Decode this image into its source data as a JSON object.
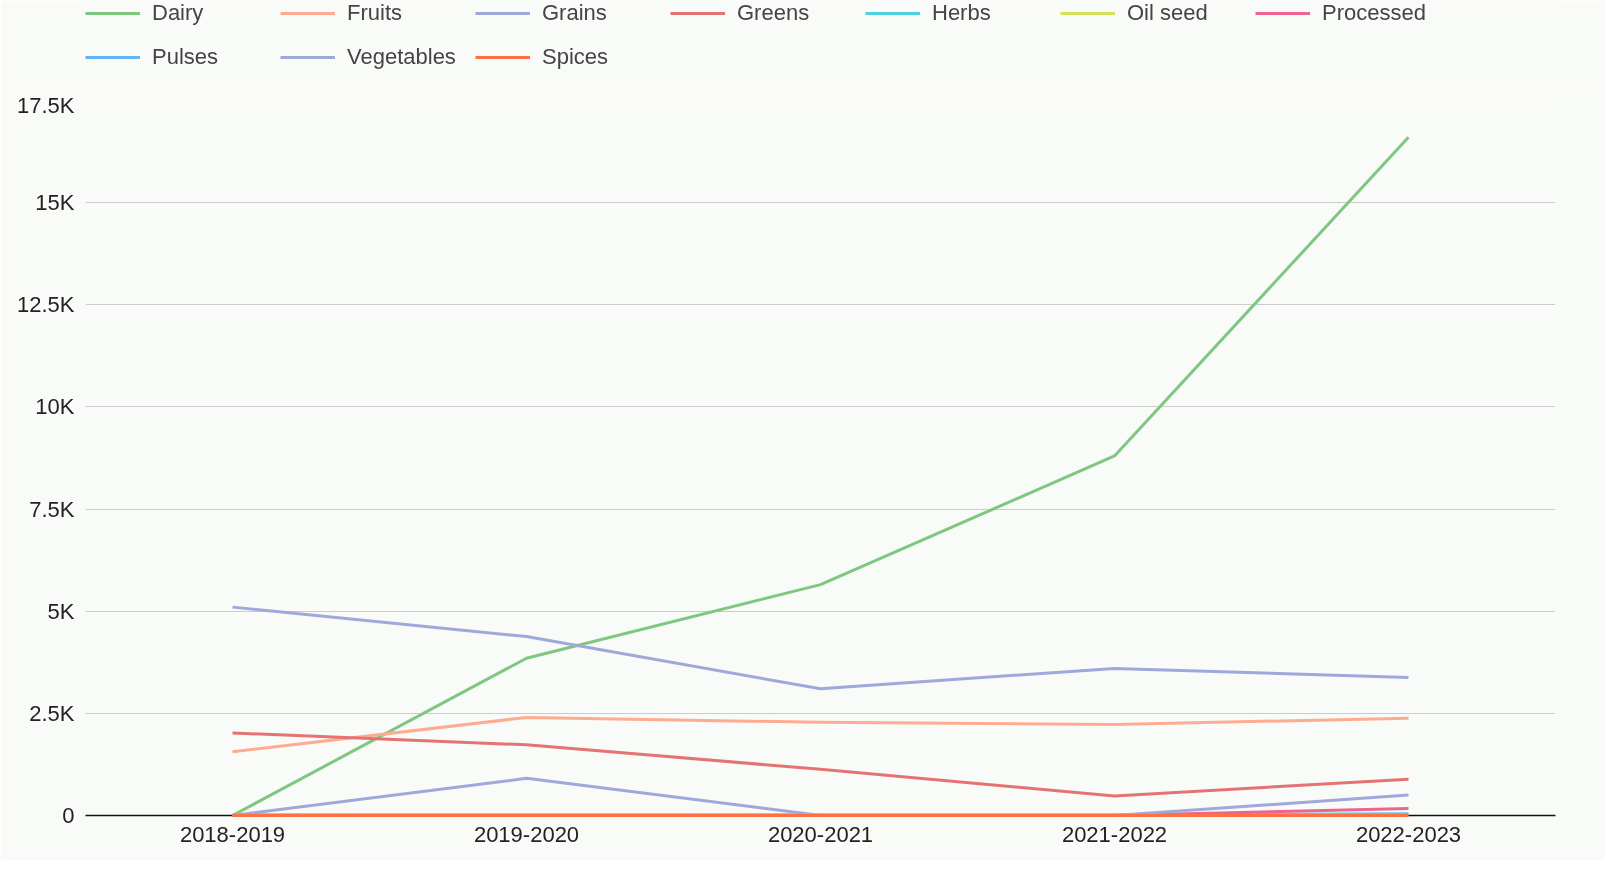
{
  "chart_data": {
    "type": "line",
    "categories": [
      "2018-2019",
      "2019-2020",
      "2020-2021",
      "2021-2022",
      "2022-2023"
    ],
    "ylim": [
      0,
      17500
    ],
    "yticks": [
      0,
      {
        "value": 2500,
        "label": "2.5K"
      },
      {
        "value": 5000,
        "label": "5K"
      },
      {
        "value": 7500,
        "label": "7.5K"
      },
      {
        "value": 10000,
        "label": "10K"
      },
      {
        "value": 12500,
        "label": "12.5K"
      },
      {
        "value": 15000,
        "label": "15K"
      },
      {
        "value": 17500,
        "label": "17.5K"
      }
    ],
    "grid": "y",
    "legend": "top",
    "marker": "none",
    "line_style": "solid",
    "series": [
      {
        "name": "Dairy",
        "color": "#7dc77f",
        "values": [
          0,
          3850,
          5650,
          8800,
          16600
        ]
      },
      {
        "name": "Fruits",
        "color": "#ffab91",
        "values": [
          1560,
          2400,
          2280,
          2230,
          2380
        ]
      },
      {
        "name": "Grains",
        "color": "#9fa8da",
        "values": [
          5100,
          4380,
          3100,
          3600,
          3380
        ]
      },
      {
        "name": "Greens",
        "color": "#e57373",
        "values": [
          2020,
          1730,
          1130,
          480,
          890
        ]
      },
      {
        "name": "Herbs",
        "color": "#4dd0e1",
        "values": [
          20,
          20,
          20,
          20,
          40
        ]
      },
      {
        "name": "Oil seed",
        "color": "#d4e157",
        "values": [
          null,
          null,
          null,
          null,
          null
        ]
      },
      {
        "name": "Processed",
        "color": "#f06292",
        "values": [
          null,
          null,
          null,
          0,
          170
        ]
      },
      {
        "name": "Pulses",
        "color": "#64b5f6",
        "values": [
          null,
          null,
          null,
          null,
          null
        ]
      },
      {
        "name": "Vegetables",
        "color": "#9fa8da",
        "values": [
          0,
          910,
          0,
          0,
          500
        ]
      },
      {
        "name": "Spices",
        "color": "#ff7043",
        "values": [
          0,
          0,
          0,
          0,
          0
        ]
      }
    ]
  }
}
